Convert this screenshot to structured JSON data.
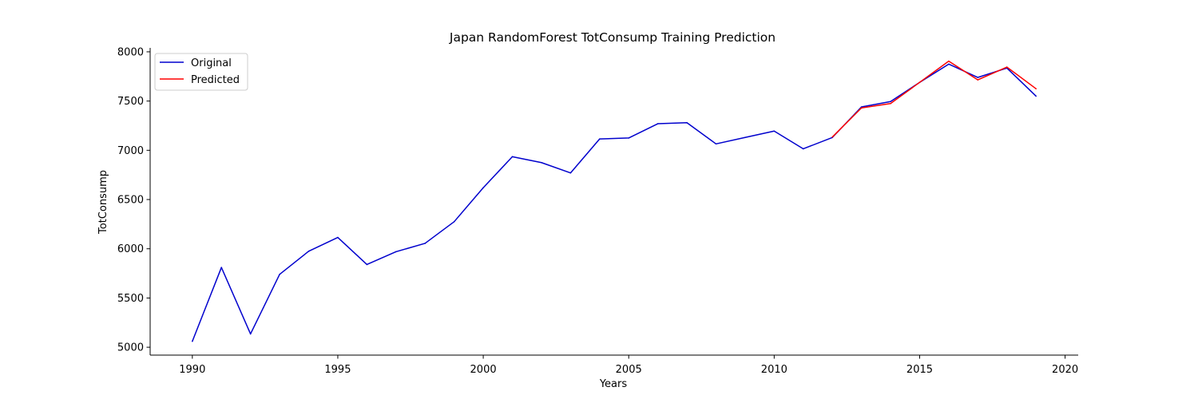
{
  "chart_data": {
    "type": "line",
    "title": "Japan RandomForest TotConsump Training Prediction",
    "xlabel": "Years",
    "ylabel": "TotConsump",
    "xlim": [
      1988.55,
      2020.45
    ],
    "ylim": [
      4920,
      8040
    ],
    "xticks": [
      1990,
      1995,
      2000,
      2005,
      2010,
      2015,
      2020
    ],
    "yticks": [
      5000,
      5500,
      6000,
      6500,
      7000,
      7500,
      8000
    ],
    "grid": false,
    "legend_position": "top-left",
    "series": [
      {
        "name": "Original",
        "color": "#0000cd",
        "x": [
          1990,
          1991,
          1992,
          1993,
          1994,
          1995,
          1996,
          1997,
          1998,
          1999,
          2000,
          2001,
          2002,
          2003,
          2004,
          2005,
          2006,
          2007,
          2008,
          2009,
          2010,
          2011,
          2012,
          2013,
          2014,
          2015,
          2016,
          2017,
          2018,
          2019
        ],
        "y": [
          5060,
          5810,
          5135,
          5740,
          5975,
          6115,
          5840,
          5970,
          6055,
          6275,
          6620,
          6935,
          6875,
          6770,
          7115,
          7125,
          7270,
          7280,
          7065,
          7130,
          7195,
          7015,
          7130,
          7440,
          7495,
          7690,
          7875,
          7740,
          7835,
          7550
        ]
      },
      {
        "name": "Predicted",
        "color": "#ff0000",
        "x": [
          2012,
          2013,
          2014,
          2015,
          2016,
          2017,
          2018,
          2019
        ],
        "y": [
          7135,
          7430,
          7475,
          7690,
          7905,
          7715,
          7845,
          7625
        ]
      }
    ]
  }
}
